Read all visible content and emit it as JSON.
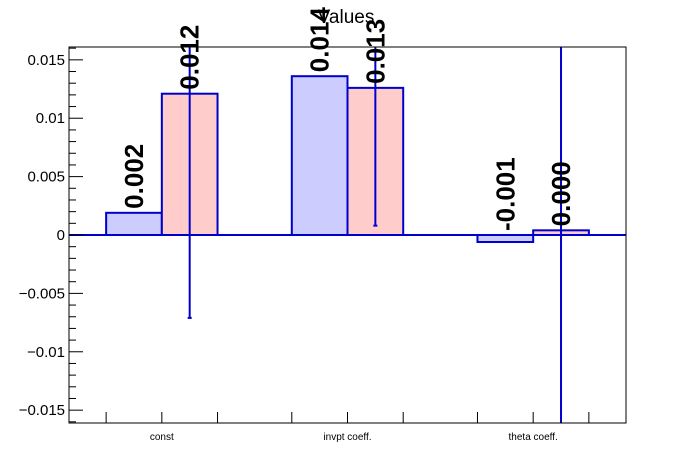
{
  "chart_data": {
    "type": "bar",
    "title": "Values",
    "xlabel": "",
    "ylabel": "",
    "categories": [
      "const",
      "invpt coeff.",
      "theta coeff."
    ],
    "ylim": [
      -0.0161,
      0.0161
    ],
    "yticks": [
      {
        "value": 0.015,
        "label": "0.015"
      },
      {
        "value": 0.01,
        "label": "0.01"
      },
      {
        "value": 0.005,
        "label": "0.005"
      },
      {
        "value": 0,
        "label": "0"
      },
      {
        "value": -0.005,
        "label": "−0.005"
      },
      {
        "value": -0.01,
        "label": "−0.01"
      },
      {
        "value": -0.015,
        "label": "−0.015"
      }
    ],
    "series": [
      {
        "color": "#ccccff",
        "values": [
          0.0019,
          0.0136,
          -0.0006
        ],
        "errors": [
          null,
          null,
          null
        ],
        "labels": [
          "0.002",
          "0.014",
          "-0.001"
        ]
      },
      {
        "color": "#ffcccc",
        "values": [
          0.0121,
          0.0126,
          0.0004
        ],
        "errors": [
          0.0192,
          0.0118,
          0.034
        ],
        "labels": [
          "0.012",
          "0.013",
          "0.000"
        ]
      }
    ],
    "line_color": "#0000cc",
    "grid": false,
    "legend": "none"
  }
}
